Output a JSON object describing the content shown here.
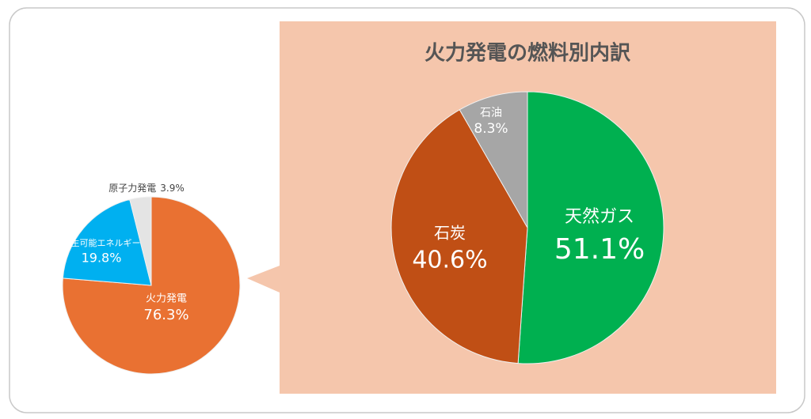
{
  "chart_data": [
    {
      "type": "pie",
      "categories": [
        "火力発電",
        "再生可能エネルギー",
        "原子力発電"
      ],
      "values": [
        76.3,
        19.8,
        3.9
      ],
      "value_labels": [
        "76.3%",
        "19.8%",
        "3.9%"
      ],
      "colors": [
        "#E97132",
        "#00B0F0",
        "#E4E4E4"
      ]
    },
    {
      "type": "pie",
      "title": "火力発電の燃料別内訳",
      "categories": [
        "天然ガス",
        "石炭",
        "石油"
      ],
      "values": [
        51.1,
        40.6,
        8.3
      ],
      "value_labels": [
        "51.1%",
        "40.6%",
        "8.3%"
      ],
      "colors": [
        "#00B050",
        "#C04F15",
        "#A6A6A6"
      ]
    }
  ]
}
